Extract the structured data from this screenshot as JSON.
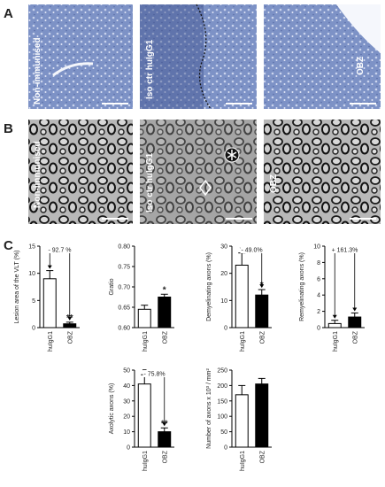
{
  "panels": {
    "A": {
      "label": "A",
      "images": [
        "Non-immunised",
        "Iso ctr huIgG1",
        "OBZ"
      ]
    },
    "B": {
      "label": "B",
      "images": [
        "Non-immunised",
        "Iso ctr huIgG1",
        "OBZ"
      ]
    },
    "C": {
      "label": "C"
    }
  },
  "chart_data": [
    {
      "type": "bar",
      "ylabel": "Lesion area of the VLT (%)",
      "categories": [
        "huIgG1",
        "OBZ"
      ],
      "values": [
        9,
        0.7
      ],
      "errors": [
        1.5,
        0.3
      ],
      "colors": [
        "#ffffff",
        "#000000"
      ],
      "ylim": [
        0,
        15
      ],
      "yticks": [
        0,
        5,
        10,
        15
      ],
      "annotation": "- 92.7 %",
      "significance": "**"
    },
    {
      "type": "bar",
      "ylabel": "Gratio",
      "categories": [
        "huIgG1",
        "OBZ"
      ],
      "values": [
        0.645,
        0.675
      ],
      "errors": [
        0.01,
        0.007
      ],
      "colors": [
        "#ffffff",
        "#000000"
      ],
      "ylim": [
        0.6,
        0.8
      ],
      "yticks": [
        {
          "value": 0.6,
          "label": "0.60"
        },
        {
          "value": 0.65,
          "label": "0.65"
        },
        {
          "value": 0.7,
          "label": "0.70"
        },
        {
          "value": 0.75,
          "label": "0.75"
        },
        {
          "value": 0.8,
          "label": "0.80"
        }
      ],
      "significance": "*"
    },
    {
      "type": "bar",
      "ylabel": "Demyelinating axons (%)",
      "categories": [
        "huIgG1",
        "OBZ"
      ],
      "values": [
        23,
        12
      ],
      "errors": [
        4.5,
        2
      ],
      "colors": [
        "#ffffff",
        "#000000"
      ],
      "ylim": [
        0,
        30
      ],
      "yticks": [
        0,
        10,
        20,
        30
      ],
      "annotation": "- 49.0%",
      "significance": "*"
    },
    {
      "type": "bar",
      "ylabel": "Remyelinating axons (%)",
      "categories": [
        "huIgG1",
        "OBZ"
      ],
      "values": [
        0.5,
        1.3
      ],
      "errors": [
        0.4,
        0.5
      ],
      "colors": [
        "#ffffff",
        "#000000"
      ],
      "ylim": [
        0,
        10
      ],
      "yticks": [
        0,
        2,
        4,
        6,
        8,
        10
      ],
      "annotation": "+ 161.3%"
    },
    {
      "type": "bar",
      "ylabel": "Axolytic axons (%)",
      "categories": [
        "huIgG1",
        "OBZ"
      ],
      "values": [
        41,
        10
      ],
      "errors": [
        6,
        2.5
      ],
      "colors": [
        "#ffffff",
        "#000000"
      ],
      "ylim": [
        0,
        50
      ],
      "yticks": [
        0,
        10,
        20,
        30,
        40,
        50
      ],
      "annotation": "- 75.8%",
      "significance": "**"
    },
    {
      "type": "bar",
      "ylabel": "Number of axons x 10³ / mm²",
      "categories": [
        "huIgG1",
        "OBZ"
      ],
      "values": [
        170,
        205
      ],
      "errors": [
        30,
        18
      ],
      "colors": [
        "#ffffff",
        "#000000"
      ],
      "ylim": [
        0,
        250
      ],
      "yticks": [
        0,
        50,
        100,
        150,
        200,
        250
      ]
    }
  ]
}
